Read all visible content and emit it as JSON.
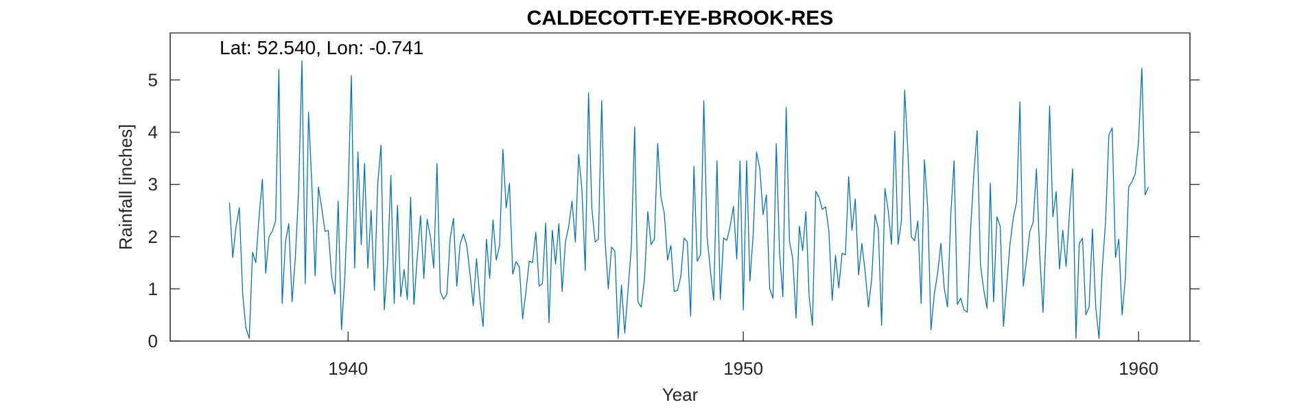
{
  "chart_data": {
    "type": "line",
    "title": "CALDECOTT-EYE-BROOK-RES",
    "annotation": "Lat: 52.540, Lon: -0.741",
    "xlabel": "Year",
    "ylabel": "Rainfall [inches]",
    "xlim": [
      1935.5,
      1961.3
    ],
    "ylim": [
      0,
      5.9
    ],
    "xticks": [
      1940,
      1950,
      1960
    ],
    "yticks": [
      0,
      1,
      2,
      3,
      4,
      5
    ],
    "grid": false,
    "line_color": "#0072BD",
    "series": [
      {
        "x_start": 1937.0,
        "x_step_months": 1,
        "values": [
          2.65,
          1.6,
          2.2,
          2.55,
          0.9,
          0.25,
          0.05,
          1.7,
          1.5,
          2.4,
          3.1,
          1.3,
          2.0,
          2.1,
          2.3,
          5.2,
          0.72,
          1.9,
          2.25,
          0.75,
          1.6,
          2.9,
          5.37,
          1.1,
          4.38,
          3.0,
          1.25,
          2.95,
          2.55,
          2.1,
          2.12,
          1.25,
          0.9,
          2.68,
          0.22,
          1.2,
          2.8,
          5.08,
          1.4,
          3.62,
          1.85,
          3.4,
          1.4,
          2.5,
          0.97,
          3.0,
          3.75,
          0.6,
          1.5,
          3.17,
          0.72,
          2.6,
          0.85,
          1.37,
          0.8,
          2.75,
          0.7,
          1.6,
          2.4,
          1.2,
          2.33,
          2.0,
          1.4,
          3.4,
          0.95,
          0.8,
          0.9,
          1.97,
          2.35,
          1.05,
          1.85,
          2.05,
          1.85,
          1.3,
          0.68,
          1.58,
          0.82,
          0.28,
          1.95,
          1.2,
          2.32,
          1.55,
          1.83,
          3.67,
          2.55,
          3.02,
          1.28,
          1.52,
          1.42,
          0.43,
          0.95,
          1.53,
          1.5,
          2.08,
          1.05,
          1.1,
          2.26,
          0.35,
          2.12,
          1.48,
          2.25,
          0.95,
          1.9,
          2.2,
          2.68,
          1.9,
          3.57,
          2.9,
          1.35,
          4.75,
          2.55,
          1.9,
          1.95,
          4.6,
          1.95,
          1.0,
          1.8,
          1.72,
          0.05,
          1.07,
          0.15,
          0.98,
          1.8,
          4.1,
          0.75,
          0.65,
          1.2,
          2.48,
          1.85,
          1.95,
          3.78,
          2.75,
          2.45,
          1.55,
          1.83,
          0.95,
          0.97,
          1.23,
          1.97,
          1.9,
          0.48,
          3.35,
          1.53,
          1.65,
          4.6,
          2.0,
          1.35,
          0.78,
          3.45,
          0.8,
          1.97,
          1.93,
          2.2,
          2.58,
          1.57,
          3.45,
          0.6,
          3.45,
          1.15,
          2.05,
          3.62,
          3.3,
          2.42,
          2.8,
          1.0,
          0.82,
          3.78,
          1.68,
          0.85,
          4.47,
          1.92,
          1.57,
          0.44,
          2.2,
          1.73,
          2.48,
          0.85,
          0.3,
          2.87,
          2.75,
          2.52,
          2.57,
          2.1,
          0.78,
          1.64,
          1.02,
          1.68,
          1.65,
          3.15,
          2.12,
          2.72,
          1.27,
          1.87,
          1.33,
          0.65,
          1.2,
          2.42,
          2.15,
          0.3,
          2.92,
          2.5,
          1.85,
          4.02,
          1.85,
          2.3,
          4.8,
          3.6,
          2.0,
          1.92,
          2.3,
          0.72,
          3.47,
          2.55,
          0.22,
          0.9,
          1.3,
          1.87,
          1.02,
          0.65,
          2.42,
          3.45,
          0.7,
          0.82,
          0.6,
          0.55,
          2.12,
          3.2,
          4.03,
          1.47,
          0.98,
          0.63,
          3.02,
          0.75,
          2.38,
          2.2,
          0.28,
          1.1,
          1.87,
          2.37,
          2.67,
          4.58,
          1.05,
          1.55,
          2.1,
          2.27,
          3.3,
          1.65,
          0.55,
          2.15,
          4.5,
          2.38,
          2.86,
          1.38,
          2.12,
          1.43,
          2.42,
          3.3,
          0.05,
          1.87,
          1.97,
          0.5,
          0.65,
          2.15,
          0.65,
          0.05,
          1.4,
          2.3,
          3.95,
          4.08,
          1.6,
          1.95,
          0.5,
          1.2,
          2.95,
          3.05,
          3.2,
          3.82,
          5.23,
          2.8,
          2.95
        ]
      }
    ]
  }
}
